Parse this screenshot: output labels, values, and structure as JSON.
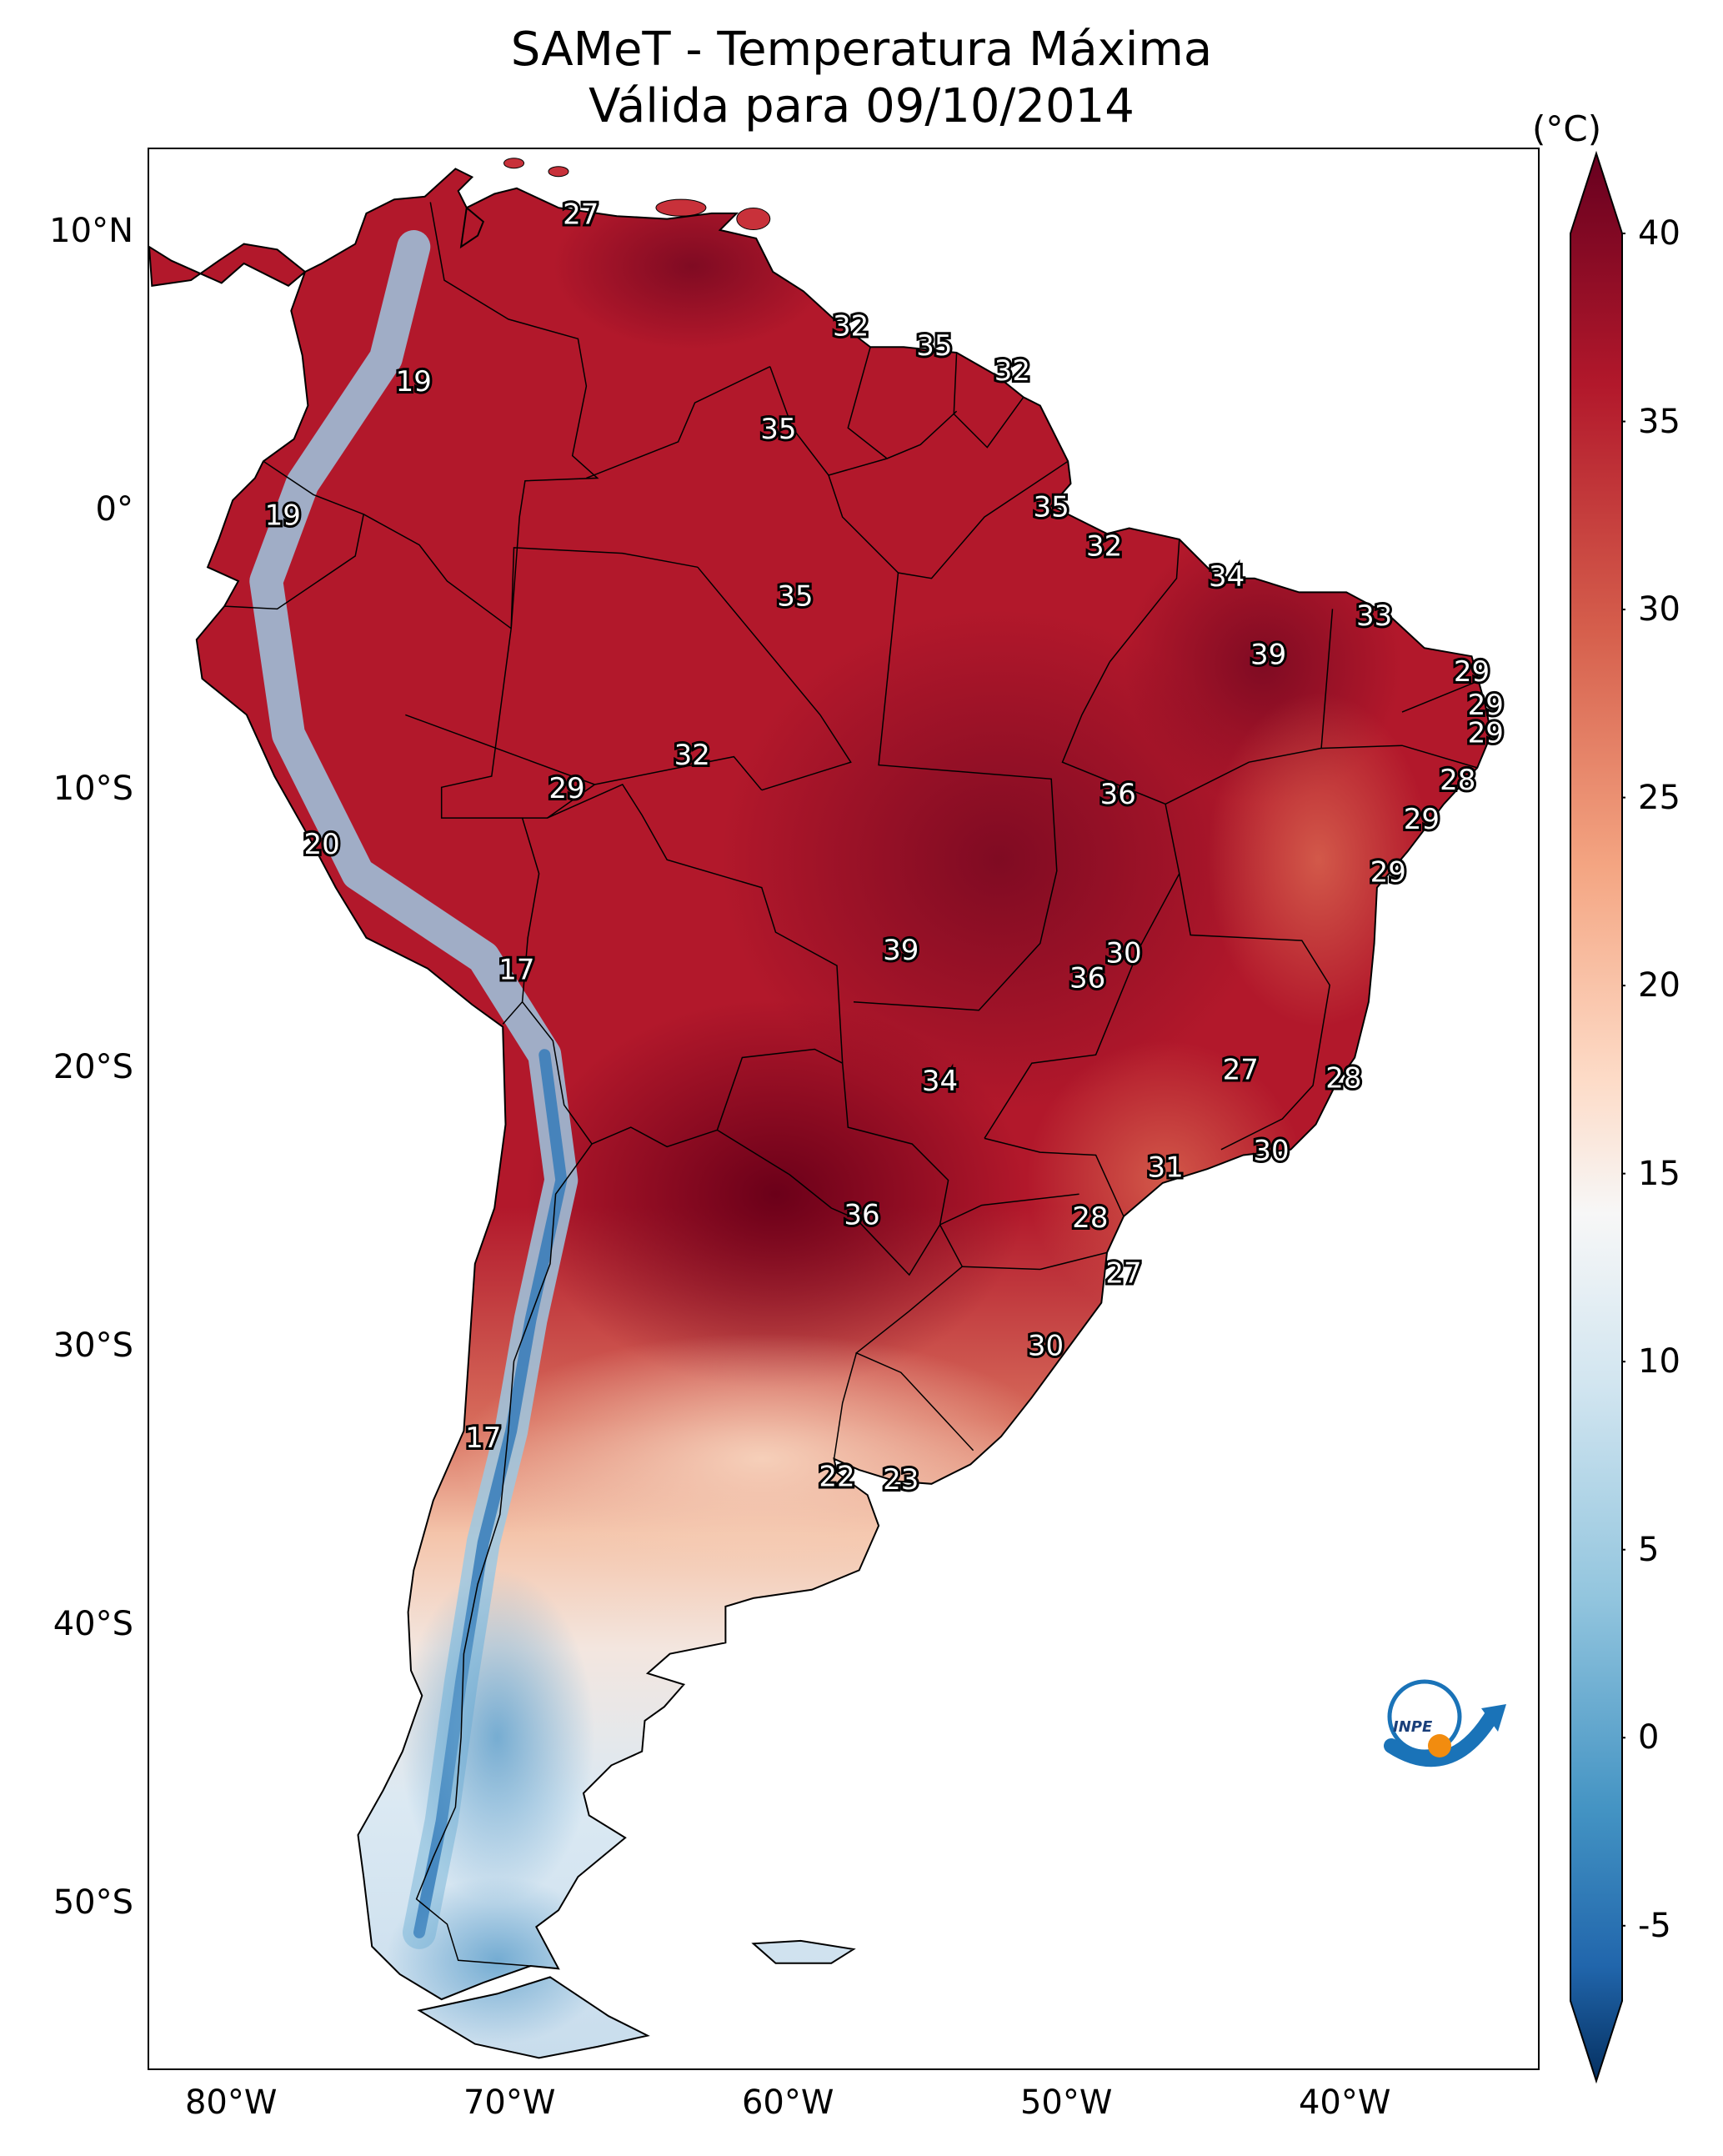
{
  "title": {
    "line1": "SAMeT - Temperatura Máxima",
    "line2": "Válida para 09/10/2014"
  },
  "axes": {
    "lat_ticks": [
      {
        "label": "10°N",
        "lat": 10
      },
      {
        "label": "0°",
        "lat": 0
      },
      {
        "label": "10°S",
        "lat": -10
      },
      {
        "label": "20°S",
        "lat": -20
      },
      {
        "label": "30°S",
        "lat": -30
      },
      {
        "label": "40°S",
        "lat": -40
      },
      {
        "label": "50°S",
        "lat": -50
      }
    ],
    "lon_ticks": [
      {
        "label": "80°W",
        "lon": -80
      },
      {
        "label": "70°W",
        "lon": -70
      },
      {
        "label": "60°W",
        "lon": -60
      },
      {
        "label": "50°W",
        "lon": -50
      },
      {
        "label": "40°W",
        "lon": -40
      }
    ],
    "extent": {
      "lon_min": -83,
      "lon_max": -33,
      "lat_min": -56,
      "lat_max": 13
    }
  },
  "colorbar": {
    "unit": "(°C)",
    "min": -7,
    "max": 40,
    "ticks": [
      "40",
      "35",
      "30",
      "25",
      "20",
      "15",
      "10",
      "5",
      "0",
      "-5"
    ],
    "tick_values": [
      40,
      35,
      30,
      25,
      20,
      15,
      10,
      5,
      0,
      -5
    ],
    "colormap": "RdBu_r"
  },
  "contour_labels": [
    {
      "text": "27",
      "lon": -67.5,
      "lat": 10.6
    },
    {
      "text": "32",
      "lon": -57.8,
      "lat": 6.6
    },
    {
      "text": "35",
      "lon": -54.8,
      "lat": 5.9
    },
    {
      "text": "32",
      "lon": -52.0,
      "lat": 5.0
    },
    {
      "text": "19",
      "lon": -73.5,
      "lat": 4.6
    },
    {
      "text": "35",
      "lon": -60.4,
      "lat": 2.9
    },
    {
      "text": "35",
      "lon": -50.6,
      "lat": 0.1
    },
    {
      "text": "19",
      "lon": -78.2,
      "lat": -0.2
    },
    {
      "text": "32",
      "lon": -48.7,
      "lat": -1.3
    },
    {
      "text": "34",
      "lon": -44.3,
      "lat": -2.4
    },
    {
      "text": "35",
      "lon": -59.8,
      "lat": -3.1
    },
    {
      "text": "33",
      "lon": -39.0,
      "lat": -3.8
    },
    {
      "text": "39",
      "lon": -42.8,
      "lat": -5.2
    },
    {
      "text": "29",
      "lon": -35.5,
      "lat": -5.8
    },
    {
      "text": "29",
      "lon": -35.0,
      "lat": -7.0
    },
    {
      "text": "29",
      "lon": -35.0,
      "lat": -8.0
    },
    {
      "text": "32",
      "lon": -63.5,
      "lat": -8.8
    },
    {
      "text": "28",
      "lon": -36.0,
      "lat": -9.7
    },
    {
      "text": "29",
      "lon": -68.0,
      "lat": -10.0
    },
    {
      "text": "36",
      "lon": -48.2,
      "lat": -10.2
    },
    {
      "text": "29",
      "lon": -37.3,
      "lat": -11.1
    },
    {
      "text": "20",
      "lon": -76.8,
      "lat": -12.0
    },
    {
      "text": "29",
      "lon": -38.5,
      "lat": -13.0
    },
    {
      "text": "39",
      "lon": -56.0,
      "lat": -15.8
    },
    {
      "text": "30",
      "lon": -48.0,
      "lat": -15.9
    },
    {
      "text": "17",
      "lon": -69.8,
      "lat": -16.5
    },
    {
      "text": "36",
      "lon": -49.3,
      "lat": -16.8
    },
    {
      "text": "27",
      "lon": -43.8,
      "lat": -20.1
    },
    {
      "text": "28",
      "lon": -40.1,
      "lat": -20.4
    },
    {
      "text": "34",
      "lon": -54.6,
      "lat": -20.5
    },
    {
      "text": "30",
      "lon": -42.7,
      "lat": -23.0
    },
    {
      "text": "31",
      "lon": -46.5,
      "lat": -23.6
    },
    {
      "text": "36",
      "lon": -57.4,
      "lat": -25.3
    },
    {
      "text": "28",
      "lon": -49.2,
      "lat": -25.4
    },
    {
      "text": "27",
      "lon": -48.0,
      "lat": -27.4
    },
    {
      "text": "30",
      "lon": -50.8,
      "lat": -30.0
    },
    {
      "text": "17",
      "lon": -71.0,
      "lat": -33.3
    },
    {
      "text": "22",
      "lon": -58.3,
      "lat": -34.7
    },
    {
      "text": "23",
      "lon": -56.0,
      "lat": -34.8
    }
  ],
  "logo": {
    "text": "INPE"
  }
}
